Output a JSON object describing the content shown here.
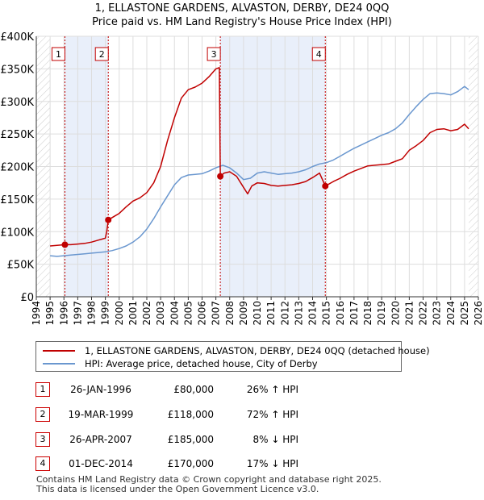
{
  "title_line1": "1, ELLASTONE GARDENS, ALVASTON, DERBY, DE24 0QQ",
  "title_line2": "Price paid vs. HM Land Registry's House Price Index (HPI)",
  "colors": {
    "price": "#c00000",
    "hpi": "#6a97cf",
    "shade": "#e9effa",
    "marker": "#c00000",
    "grid": "#dddddd"
  },
  "chart_data": {
    "type": "line",
    "title": "Price paid vs. HM Land Registry's House Price Index (HPI)",
    "xlabel": "",
    "ylabel": "",
    "xlim": [
      1994,
      2026
    ],
    "ylim": [
      0,
      400000
    ],
    "y_ticks": [
      0,
      50000,
      100000,
      150000,
      200000,
      250000,
      300000,
      350000,
      400000
    ],
    "y_tick_labels": [
      "£0",
      "£50K",
      "£100K",
      "£150K",
      "£200K",
      "£250K",
      "£300K",
      "£350K",
      "£400K"
    ],
    "x_ticks": [
      1994,
      1995,
      1996,
      1997,
      1998,
      1999,
      2000,
      2001,
      2002,
      2003,
      2004,
      2005,
      2006,
      2007,
      2008,
      2009,
      2010,
      2011,
      2012,
      2013,
      2014,
      2015,
      2016,
      2017,
      2018,
      2019,
      2020,
      2021,
      2022,
      2023,
      2024,
      2025,
      2026
    ],
    "x_tick_labels": [
      "1994",
      "1995",
      "1996",
      "1997",
      "1998",
      "1999",
      "2000",
      "2001",
      "2002",
      "2003",
      "2004",
      "2005",
      "2006",
      "2007",
      "2008",
      "2009",
      "2010",
      "2011",
      "2012",
      "2013",
      "2014",
      "2015",
      "2016",
      "2017",
      "2018",
      "2019",
      "2020",
      "2021",
      "2022",
      "2023",
      "2024",
      "2025",
      "2026"
    ],
    "shaded_ranges": [
      [
        1996.07,
        1999.21
      ],
      [
        2007.32,
        2014.92
      ]
    ],
    "hatched_ranges": [
      [
        1994,
        1995
      ],
      [
        2025.3,
        2026
      ]
    ],
    "series": [
      {
        "name": "1, ELLASTONE GARDENS, ALVASTON, DERBY, DE24 0QQ (detached house)",
        "points": [
          [
            1995.0,
            78000
          ],
          [
            1995.5,
            79000
          ],
          [
            1996.07,
            80000
          ],
          [
            1996.5,
            80000
          ],
          [
            1997.0,
            81000
          ],
          [
            1997.5,
            82000
          ],
          [
            1998.0,
            84000
          ],
          [
            1998.5,
            87000
          ],
          [
            1999.0,
            90000
          ],
          [
            1999.1,
            100000
          ],
          [
            1999.21,
            118000
          ],
          [
            1999.6,
            123000
          ],
          [
            2000.0,
            128000
          ],
          [
            2000.5,
            138000
          ],
          [
            2001.0,
            147000
          ],
          [
            2001.5,
            152000
          ],
          [
            2002.0,
            160000
          ],
          [
            2002.5,
            175000
          ],
          [
            2003.0,
            200000
          ],
          [
            2003.5,
            240000
          ],
          [
            2004.0,
            275000
          ],
          [
            2004.5,
            305000
          ],
          [
            2005.0,
            318000
          ],
          [
            2005.5,
            322000
          ],
          [
            2006.0,
            328000
          ],
          [
            2006.5,
            338000
          ],
          [
            2007.0,
            350000
          ],
          [
            2007.25,
            352000
          ],
          [
            2007.32,
            185000
          ],
          [
            2007.6,
            190000
          ],
          [
            2008.0,
            192000
          ],
          [
            2008.5,
            185000
          ],
          [
            2009.0,
            168000
          ],
          [
            2009.3,
            158000
          ],
          [
            2009.6,
            170000
          ],
          [
            2010.0,
            175000
          ],
          [
            2010.5,
            174000
          ],
          [
            2011.0,
            171000
          ],
          [
            2011.5,
            170000
          ],
          [
            2012.0,
            171000
          ],
          [
            2012.5,
            172000
          ],
          [
            2013.0,
            174000
          ],
          [
            2013.5,
            177000
          ],
          [
            2014.0,
            183000
          ],
          [
            2014.5,
            190000
          ],
          [
            2014.92,
            170000
          ],
          [
            2015.5,
            177000
          ],
          [
            2016.0,
            182000
          ],
          [
            2016.5,
            188000
          ],
          [
            2017.0,
            193000
          ],
          [
            2017.5,
            197000
          ],
          [
            2018.0,
            201000
          ],
          [
            2018.5,
            202000
          ],
          [
            2019.0,
            203000
          ],
          [
            2019.5,
            204000
          ],
          [
            2020.0,
            208000
          ],
          [
            2020.5,
            212000
          ],
          [
            2021.0,
            225000
          ],
          [
            2021.5,
            232000
          ],
          [
            2022.0,
            240000
          ],
          [
            2022.5,
            252000
          ],
          [
            2023.0,
            257000
          ],
          [
            2023.5,
            258000
          ],
          [
            2024.0,
            255000
          ],
          [
            2024.5,
            257000
          ],
          [
            2025.0,
            265000
          ],
          [
            2025.3,
            258000
          ]
        ]
      },
      {
        "name": "HPI: Average price, detached house, City of Derby",
        "points": [
          [
            1995.0,
            63000
          ],
          [
            1995.5,
            62000
          ],
          [
            1996.0,
            63000
          ],
          [
            1996.5,
            64000
          ],
          [
            1997.0,
            65000
          ],
          [
            1997.5,
            66000
          ],
          [
            1998.0,
            67000
          ],
          [
            1998.5,
            68000
          ],
          [
            1999.0,
            69000
          ],
          [
            1999.5,
            71000
          ],
          [
            2000.0,
            74000
          ],
          [
            2000.5,
            78000
          ],
          [
            2001.0,
            84000
          ],
          [
            2001.5,
            92000
          ],
          [
            2002.0,
            104000
          ],
          [
            2002.5,
            120000
          ],
          [
            2003.0,
            138000
          ],
          [
            2003.5,
            155000
          ],
          [
            2004.0,
            172000
          ],
          [
            2004.5,
            183000
          ],
          [
            2005.0,
            187000
          ],
          [
            2005.5,
            188000
          ],
          [
            2006.0,
            189000
          ],
          [
            2006.5,
            193000
          ],
          [
            2007.0,
            198000
          ],
          [
            2007.5,
            202000
          ],
          [
            2008.0,
            198000
          ],
          [
            2008.5,
            190000
          ],
          [
            2009.0,
            180000
          ],
          [
            2009.5,
            182000
          ],
          [
            2010.0,
            190000
          ],
          [
            2010.5,
            192000
          ],
          [
            2011.0,
            190000
          ],
          [
            2011.5,
            188000
          ],
          [
            2012.0,
            189000
          ],
          [
            2012.5,
            190000
          ],
          [
            2013.0,
            192000
          ],
          [
            2013.5,
            195000
          ],
          [
            2014.0,
            200000
          ],
          [
            2014.5,
            204000
          ],
          [
            2015.0,
            206000
          ],
          [
            2015.5,
            210000
          ],
          [
            2016.0,
            216000
          ],
          [
            2016.5,
            222000
          ],
          [
            2017.0,
            228000
          ],
          [
            2017.5,
            233000
          ],
          [
            2018.0,
            238000
          ],
          [
            2018.5,
            243000
          ],
          [
            2019.0,
            248000
          ],
          [
            2019.5,
            252000
          ],
          [
            2020.0,
            258000
          ],
          [
            2020.5,
            267000
          ],
          [
            2021.0,
            280000
          ],
          [
            2021.5,
            292000
          ],
          [
            2022.0,
            303000
          ],
          [
            2022.5,
            312000
          ],
          [
            2023.0,
            313000
          ],
          [
            2023.5,
            312000
          ],
          [
            2024.0,
            310000
          ],
          [
            2024.5,
            315000
          ],
          [
            2025.0,
            323000
          ],
          [
            2025.3,
            318000
          ]
        ]
      }
    ],
    "sales": [
      {
        "num": "1",
        "x": 1996.07,
        "y": 80000
      },
      {
        "num": "2",
        "x": 1999.21,
        "y": 118000
      },
      {
        "num": "3",
        "x": 2007.32,
        "y": 185000
      },
      {
        "num": "4",
        "x": 2014.92,
        "y": 170000
      }
    ]
  },
  "legend": {
    "price_label": "1, ELLASTONE GARDENS, ALVASTON, DERBY, DE24 0QQ (detached house)",
    "hpi_label": "HPI: Average price, detached house, City of Derby"
  },
  "transactions": [
    {
      "num": "1",
      "date": "26-JAN-1996",
      "price": "£80,000",
      "hpi": "26% ↑ HPI"
    },
    {
      "num": "2",
      "date": "19-MAR-1999",
      "price": "£118,000",
      "hpi": "72% ↑ HPI"
    },
    {
      "num": "3",
      "date": "26-APR-2007",
      "price": "£185,000",
      "hpi": "8% ↓ HPI"
    },
    {
      "num": "4",
      "date": "01-DEC-2014",
      "price": "£170,000",
      "hpi": "17% ↓ HPI"
    }
  ],
  "footer_line1": "Contains HM Land Registry data © Crown copyright and database right 2025.",
  "footer_line2": "This data is licensed under the Open Government Licence v3.0."
}
